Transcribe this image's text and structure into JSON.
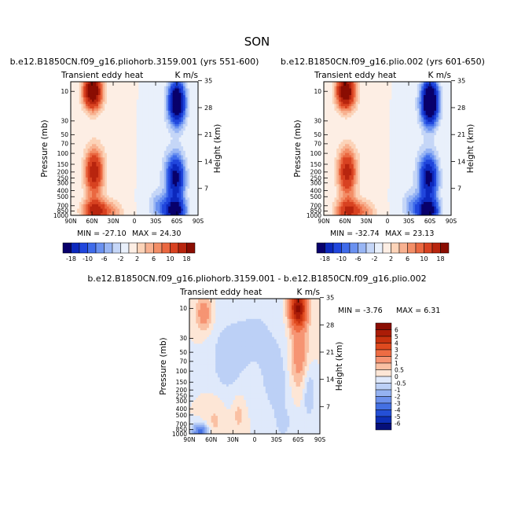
{
  "figure": {
    "suptitle": "SON",
    "cbar_top_ticks": [
      "-18",
      "-10",
      "-6",
      "-2",
      "2",
      "6",
      "10",
      "18"
    ],
    "cbar_diff_ticks": [
      "6",
      "5",
      "4",
      "3",
      "2",
      "1",
      "0.5",
      "0",
      "-0.5",
      "-1",
      "-2",
      "-3",
      "-4",
      "-5",
      "-6"
    ],
    "colors_top": [
      "#08006b",
      "#0c28bd",
      "#2046dd",
      "#3f6bea",
      "#6a91f0",
      "#98b5f4",
      "#c5d6f7",
      "#e9f0fb",
      "#fdeee4",
      "#fcd3b8",
      "#f8b190",
      "#f38e67",
      "#ea6841",
      "#d84221",
      "#b8250e",
      "#8a0d02"
    ],
    "colors_diff": [
      "#8a0d02",
      "#ab1c07",
      "#c8320f",
      "#df4a1f",
      "#ee6c43",
      "#f69473",
      "#fac0a3",
      "#fde6d6",
      "#dfe9fb",
      "#bcd0f6",
      "#95b2f1",
      "#6d91ec",
      "#4470e3",
      "#244fd6",
      "#0e2fb6",
      "#06107a"
    ]
  },
  "chart_data": [
    {
      "type": "heatmap",
      "title": "b.e12.B1850CN.f09_g16.pliohorb.3159.001 (yrs 551-600)",
      "left_label": "Transient eddy heat",
      "right_label": "K m/s",
      "xlabel": "",
      "ylabel": "Pressure (mb)",
      "ylabel_right": "Height (km)",
      "x_range": [
        90,
        -90
      ],
      "x_ticks": [
        "90N",
        "60N",
        "30N",
        "0",
        "30S",
        "60S",
        "90S"
      ],
      "y_ticks": [
        "10",
        "30",
        "50",
        "70",
        "100",
        "150",
        "200",
        "250",
        "300",
        "400",
        "500",
        "700",
        "850",
        "1000"
      ],
      "height_ticks": [
        "35",
        "28",
        "21",
        "14",
        "7"
      ],
      "min_text": "MIN = -27.10",
      "max_text": "MAX = 24.30",
      "min": -27.1,
      "max": 24.3,
      "levels": [
        -18,
        -14,
        -10,
        -8,
        -6,
        -4,
        -2,
        0,
        2,
        4,
        6,
        8,
        10,
        14,
        18
      ],
      "features": [
        {
          "lat": 59,
          "p": 10,
          "amp": 25,
          "sx": 9,
          "sz": 0.45
        },
        {
          "lat": 57,
          "p": 200,
          "amp": 17,
          "sx": 9,
          "sz": 0.6
        },
        {
          "lat": 55,
          "p": 850,
          "amp": 16,
          "sx": 12,
          "sz": 0.3
        },
        {
          "lat": 30,
          "p": 900,
          "amp": 5,
          "sx": 10,
          "sz": 0.3
        },
        {
          "lat": 12,
          "p": 50,
          "amp": 1.3,
          "sx": 20,
          "sz": 1.5
        },
        {
          "lat": -60,
          "p": 15,
          "amp": -27,
          "sx": 8,
          "sz": 0.55
        },
        {
          "lat": -58,
          "p": 250,
          "amp": -20,
          "sx": 9,
          "sz": 0.6
        },
        {
          "lat": -57,
          "p": 850,
          "amp": -22,
          "sx": 10,
          "sz": 0.3
        },
        {
          "lat": -35,
          "p": 700,
          "amp": -6,
          "sx": 9,
          "sz": 0.35
        },
        {
          "lat": -20,
          "p": 60,
          "amp": -1.5,
          "sx": 18,
          "sz": 1.5
        }
      ]
    },
    {
      "type": "heatmap",
      "title": "b.e12.B1850CN.f09_g16.plio.002 (yrs 601-650)",
      "left_label": "Transient eddy heat",
      "right_label": "K m/s",
      "xlabel": "",
      "ylabel": "Pressure (mb)",
      "ylabel_right": "Height (km)",
      "x_range": [
        90,
        -90
      ],
      "x_ticks": [
        "90N",
        "60N",
        "30N",
        "0",
        "30S",
        "60S",
        "90S"
      ],
      "y_ticks": [
        "10",
        "30",
        "50",
        "70",
        "100",
        "150",
        "200",
        "250",
        "300",
        "400",
        "500",
        "700",
        "850",
        "1000"
      ],
      "height_ticks": [
        "35",
        "28",
        "21",
        "14",
        "7"
      ],
      "min_text": "MIN = -32.74",
      "max_text": "MAX = 23.13",
      "min": -32.74,
      "max": 23.13,
      "levels": [
        -18,
        -14,
        -10,
        -8,
        -6,
        -4,
        -2,
        0,
        2,
        4,
        6,
        8,
        10,
        14,
        18
      ],
      "features": [
        {
          "lat": 59,
          "p": 10,
          "amp": 24,
          "sx": 9,
          "sz": 0.45
        },
        {
          "lat": 57,
          "p": 200,
          "amp": 16,
          "sx": 9,
          "sz": 0.6
        },
        {
          "lat": 55,
          "p": 850,
          "amp": 15,
          "sx": 12,
          "sz": 0.3
        },
        {
          "lat": 30,
          "p": 900,
          "amp": 5,
          "sx": 10,
          "sz": 0.3
        },
        {
          "lat": 12,
          "p": 50,
          "amp": 1.3,
          "sx": 20,
          "sz": 1.5
        },
        {
          "lat": -60,
          "p": 15,
          "amp": -32,
          "sx": 8,
          "sz": 0.55
        },
        {
          "lat": -58,
          "p": 250,
          "amp": -20,
          "sx": 9,
          "sz": 0.6
        },
        {
          "lat": -57,
          "p": 850,
          "amp": -23,
          "sx": 10,
          "sz": 0.3
        },
        {
          "lat": -35,
          "p": 700,
          "amp": -6,
          "sx": 9,
          "sz": 0.35
        },
        {
          "lat": -20,
          "p": 60,
          "amp": -1.5,
          "sx": 18,
          "sz": 1.5
        }
      ]
    },
    {
      "type": "heatmap",
      "title": "b.e12.B1850CN.f09_g16.pliohorb.3159.001 - b.e12.B1850CN.f09_g16.plio.002",
      "left_label": "Transient eddy heat",
      "right_label": "K m/s",
      "xlabel": "",
      "ylabel": "Pressure (mb)",
      "ylabel_right": "Height (km)",
      "x_range": [
        90,
        -90
      ],
      "x_ticks": [
        "90N",
        "60N",
        "30N",
        "0",
        "30S",
        "60S",
        "90S"
      ],
      "y_ticks": [
        "10",
        "30",
        "50",
        "70",
        "100",
        "150",
        "200",
        "250",
        "300",
        "400",
        "500",
        "700",
        "850",
        "1000"
      ],
      "height_ticks": [
        "35",
        "28",
        "21",
        "14",
        "7"
      ],
      "min_text": "MIN = -3.76",
      "max_text": "MAX = 6.31",
      "min": -3.76,
      "max": 6.31,
      "levels": [
        -6,
        -5,
        -4,
        -3,
        -2,
        -1,
        -0.5,
        0,
        0.5,
        1,
        2,
        3,
        4,
        5,
        6
      ],
      "features": [
        {
          "lat": -60,
          "p": 10,
          "amp": 6.3,
          "sx": 8,
          "sz": 0.5
        },
        {
          "lat": -62,
          "p": 60,
          "amp": 1.5,
          "sx": 10,
          "sz": 0.8
        },
        {
          "lat": 70,
          "p": 12,
          "amp": 1.5,
          "sx": 8,
          "sz": 0.45
        },
        {
          "lat": 55,
          "p": 600,
          "amp": 0.6,
          "sx": 10,
          "sz": 0.6
        },
        {
          "lat": 22,
          "p": 500,
          "amp": 0.7,
          "sx": 6,
          "sz": 0.5
        },
        {
          "lat": 40,
          "p": 70,
          "amp": -0.7,
          "sx": 15,
          "sz": 0.9
        },
        {
          "lat": 0,
          "p": 30,
          "amp": -0.6,
          "sx": 30,
          "sz": 1.2
        },
        {
          "lat": -30,
          "p": 150,
          "amp": -0.8,
          "sx": 12,
          "sz": 0.8
        },
        {
          "lat": -40,
          "p": 700,
          "amp": -0.6,
          "sx": 10,
          "sz": 0.5
        },
        {
          "lat": -75,
          "p": 200,
          "amp": -1.0,
          "sx": 6,
          "sz": 0.8
        },
        {
          "lat": 75,
          "p": 950,
          "amp": -3.7,
          "sx": 7,
          "sz": 0.2
        }
      ]
    }
  ]
}
